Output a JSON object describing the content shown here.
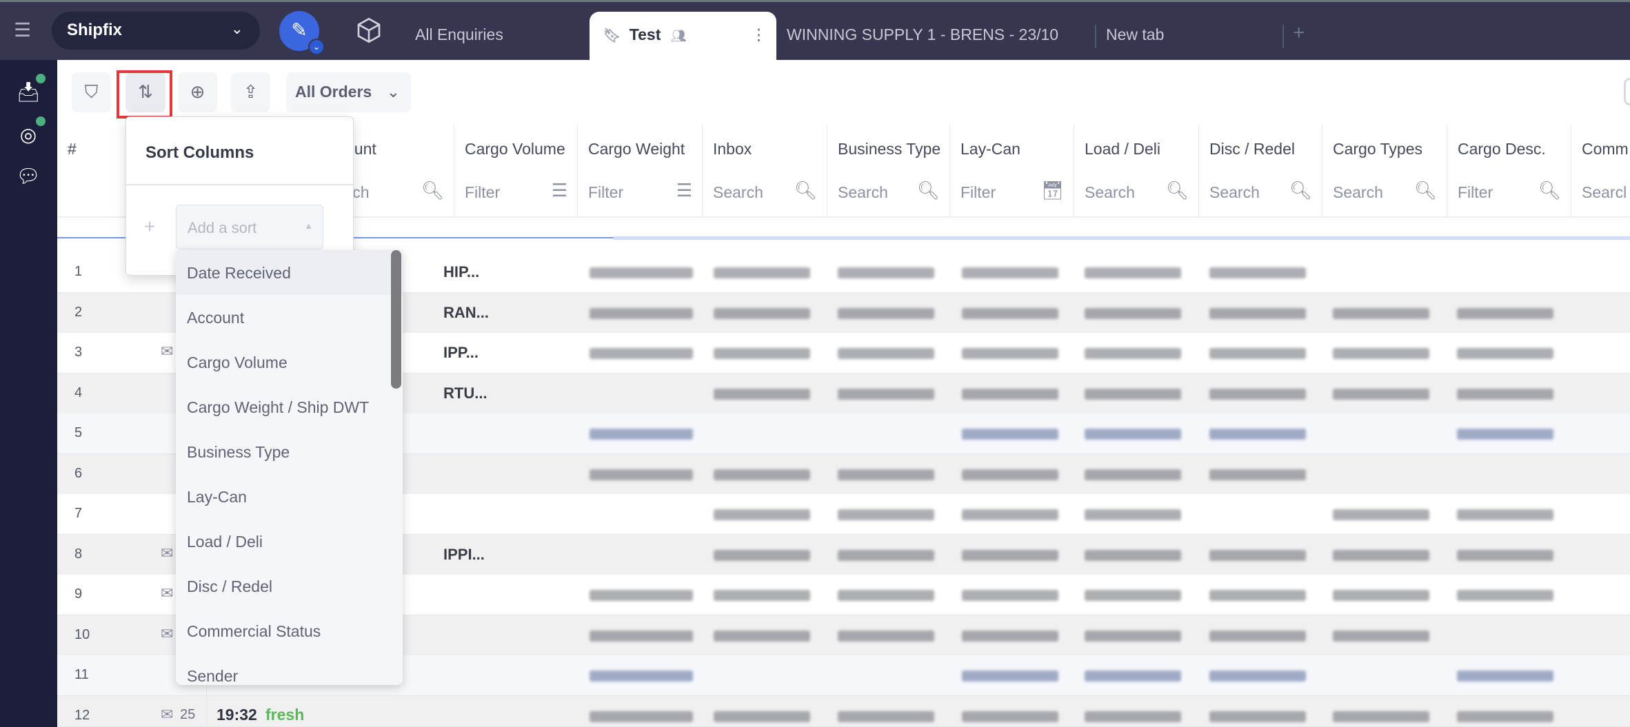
{
  "app": {
    "workspace": "Shipfix"
  },
  "tabs": [
    {
      "label": "All Enquiries"
    },
    {
      "label": "Test",
      "active": true
    },
    {
      "label": "WINNING SUPPLY 1 - BRENS - 23/10"
    },
    {
      "label": "New tab"
    }
  ],
  "toolbar": {
    "view_select": "All Orders"
  },
  "columns": [
    {
      "title": "#",
      "filter": ""
    },
    {
      "title": "Account",
      "visible_title": "ccount",
      "filter": "earch",
      "icon": "search-icon"
    },
    {
      "title": "Cargo Volume",
      "filter": "Filter",
      "icon": "sliders-icon"
    },
    {
      "title": "Cargo Weight",
      "filter": "Filter",
      "icon": "sliders-icon"
    },
    {
      "title": "Inbox",
      "filter": "Search",
      "icon": "search-icon"
    },
    {
      "title": "Business Type",
      "filter": "Search",
      "icon": "search-icon"
    },
    {
      "title": "Lay-Can",
      "filter": "Filter",
      "icon": "calendar-icon"
    },
    {
      "title": "Load / Deli",
      "filter": "Search",
      "icon": "search-icon"
    },
    {
      "title": "Disc / Redel",
      "filter": "Search",
      "icon": "search-icon"
    },
    {
      "title": "Cargo Types",
      "filter": "Search",
      "icon": "search-icon"
    },
    {
      "title": "Cargo Desc.",
      "filter": "Filter",
      "icon": "search-icon"
    },
    {
      "title": "Comm",
      "filter": "Searcl"
    }
  ],
  "rows": [
    {
      "n": "1",
      "account": "HIP..."
    },
    {
      "n": "2",
      "account": "RAN..."
    },
    {
      "n": "3",
      "account": "IPP...",
      "mail": true
    },
    {
      "n": "4",
      "account": "RTU..."
    },
    {
      "n": "5",
      "account": ""
    },
    {
      "n": "6",
      "account": ""
    },
    {
      "n": "7",
      "account": ""
    },
    {
      "n": "8",
      "account": "IPPI...",
      "mail": true
    },
    {
      "n": "9",
      "account": "",
      "mail": true
    },
    {
      "n": "10",
      "account": "",
      "mail": true
    },
    {
      "n": "11",
      "account": ""
    },
    {
      "n": "12",
      "account": "",
      "mail": true,
      "mail_count": "25",
      "time": "19:32",
      "status": "fresh"
    }
  ],
  "sort_popover": {
    "title": "Sort Columns",
    "add_placeholder": "Add a sort",
    "options": [
      "Date Received",
      "Account",
      "Cargo Volume",
      "Cargo Weight / Ship DWT",
      "Business Type",
      "Lay-Can",
      "Load / Deli",
      "Disc / Redel",
      "Commercial Status",
      "Sender"
    ],
    "highlighted": "Date Received"
  },
  "colors": {
    "topbar": "#363650",
    "sidebar": "#1d1e3c",
    "accent": "#3b66e0",
    "highlight_border": "#e0393c",
    "fresh": "#5cb85c",
    "notification_dot": "#4caf7f"
  }
}
